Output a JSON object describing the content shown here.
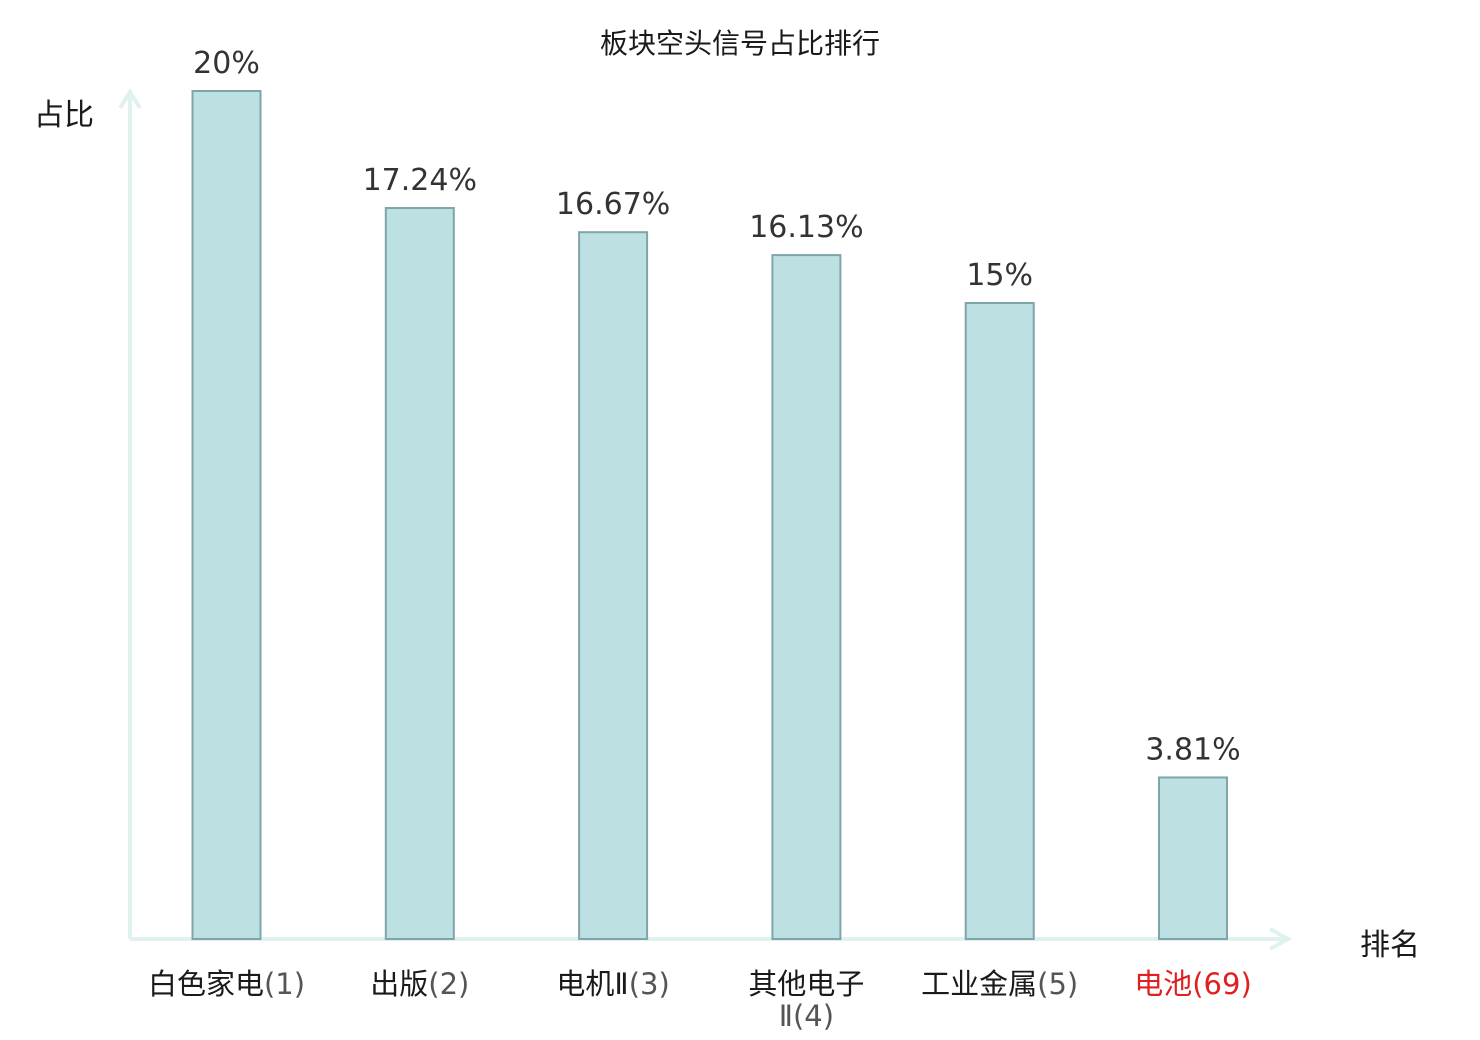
{
  "chart_data": {
    "type": "bar",
    "title": "板块空头信号占比排行",
    "ylabel": "占比",
    "xlabel": "排名",
    "categories": [
      {
        "name": "白色家电",
        "rank": "(1)"
      },
      {
        "name": "出版",
        "rank": "(2)"
      },
      {
        "name": "电机Ⅱ",
        "rank": "(3)"
      },
      {
        "name": "其他电子Ⅱ",
        "rank": "(4)"
      },
      {
        "name": "工业金属",
        "rank": "(5)"
      },
      {
        "name": "电池",
        "rank": "(69)"
      }
    ],
    "values": [
      20,
      17.24,
      16.67,
      16.13,
      15,
      3.81
    ],
    "value_labels": [
      "20%",
      "17.24%",
      "16.67%",
      "16.13%",
      "15%",
      "3.81%"
    ],
    "ylim": [
      0,
      20
    ],
    "grid": false,
    "legend": "none",
    "highlight_index": 5,
    "colors": {
      "bar_fill": "#bde0e3",
      "bar_stroke": "#7fa5a8",
      "axis": "#dff2ef",
      "text": "#333333",
      "highlight": "#e02020"
    }
  }
}
